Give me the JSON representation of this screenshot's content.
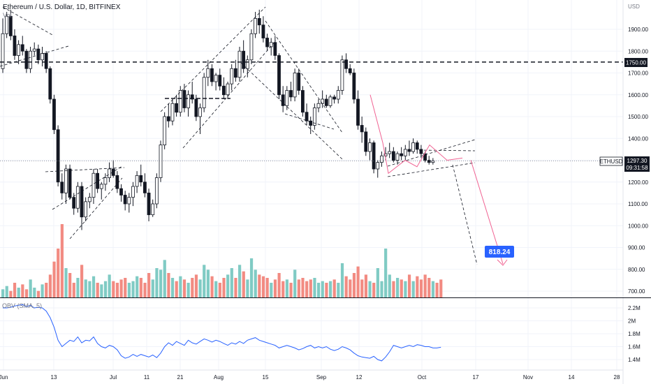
{
  "header": {
    "symbol_title": "Ethereum / U.S. Dollar, 1D, BITFINEX",
    "volume_label": "Vol"
  },
  "price_axis": {
    "currency": "USD",
    "ticks": [
      "1900.00",
      "1800.00",
      "1700.00",
      "1600.00",
      "1500.00",
      "1400.00",
      "1300.00",
      "1200.00",
      "1100.00",
      "1000.00",
      "900.00",
      "800.00",
      "700.00"
    ]
  },
  "obv_axis": {
    "ticks": [
      "2.2M",
      "2M",
      "1.8M",
      "1.6M",
      "1.4M"
    ]
  },
  "time_axis": {
    "ticks": [
      "Jun",
      "13",
      "Jul",
      "11",
      "21",
      "Aug",
      "15",
      "Sep",
      "12",
      "Oct",
      "17",
      "Nov",
      "14",
      "28"
    ]
  },
  "badges": {
    "level_1750": "1750.00",
    "ticker": "ETHUSD",
    "last_price": "1297.30",
    "countdown": "09:31:58",
    "target": "818.24"
  },
  "obv_panel": {
    "label": "OBV (SMA, 5)"
  },
  "colors": {
    "up": "#26a69a",
    "down": "#ef5350",
    "vol_up": "#80cbc4",
    "vol_down": "#f28b82",
    "obv_line": "#2962ff",
    "projection": "#f06292",
    "target_badge": "#2962ff",
    "grid": "#f0f3fa"
  },
  "chart_data": {
    "type": "candlestick",
    "title": "Ethereum / U.S. Dollar, 1D, BITFINEX",
    "price_range": [
      680,
      2000
    ],
    "horizontal_level": 1750,
    "current_price": 1297.3,
    "target_price": 818.24,
    "candles": [
      [
        1720,
        1950,
        1700,
        1880
      ],
      [
        1880,
        1980,
        1860,
        1960
      ],
      [
        1960,
        1990,
        1850,
        1870
      ],
      [
        1870,
        1900,
        1760,
        1780
      ],
      [
        1780,
        1850,
        1740,
        1830
      ],
      [
        1830,
        1870,
        1780,
        1800
      ],
      [
        1800,
        1810,
        1700,
        1720
      ],
      [
        1720,
        1820,
        1700,
        1800
      ],
      [
        1800,
        1840,
        1780,
        1810
      ],
      [
        1810,
        1830,
        1740,
        1760
      ],
      [
        1760,
        1820,
        1730,
        1790
      ],
      [
        1790,
        1800,
        1700,
        1720
      ],
      [
        1720,
        1730,
        1560,
        1580
      ],
      [
        1580,
        1600,
        1420,
        1440
      ],
      [
        1440,
        1460,
        1180,
        1200
      ],
      [
        1200,
        1240,
        1120,
        1150
      ],
      [
        1150,
        1280,
        1100,
        1260
      ],
      [
        1260,
        1280,
        1120,
        1130
      ],
      [
        1130,
        1150,
        1050,
        1080
      ],
      [
        1080,
        1200,
        1060,
        1180
      ],
      [
        1180,
        1200,
        980,
        1040
      ],
      [
        1040,
        1130,
        1020,
        1110
      ],
      [
        1110,
        1150,
        1080,
        1130
      ],
      [
        1130,
        1260,
        1100,
        1240
      ],
      [
        1240,
        1260,
        1150,
        1170
      ],
      [
        1170,
        1200,
        1120,
        1190
      ],
      [
        1190,
        1240,
        1160,
        1220
      ],
      [
        1220,
        1290,
        1200,
        1260
      ],
      [
        1260,
        1300,
        1220,
        1230
      ],
      [
        1230,
        1250,
        1150,
        1170
      ],
      [
        1170,
        1190,
        1110,
        1140
      ],
      [
        1140,
        1160,
        1070,
        1100
      ],
      [
        1100,
        1150,
        1060,
        1130
      ],
      [
        1130,
        1200,
        1090,
        1180
      ],
      [
        1180,
        1250,
        1150,
        1230
      ],
      [
        1230,
        1280,
        1180,
        1200
      ],
      [
        1200,
        1240,
        1130,
        1150
      ],
      [
        1150,
        1170,
        1020,
        1050
      ],
      [
        1050,
        1120,
        1040,
        1100
      ],
      [
        1100,
        1240,
        1080,
        1220
      ],
      [
        1220,
        1390,
        1200,
        1370
      ],
      [
        1370,
        1520,
        1350,
        1500
      ],
      [
        1500,
        1560,
        1450,
        1480
      ],
      [
        1480,
        1580,
        1460,
        1560
      ],
      [
        1560,
        1600,
        1500,
        1520
      ],
      [
        1520,
        1640,
        1500,
        1620
      ],
      [
        1620,
        1650,
        1520,
        1540
      ],
      [
        1540,
        1620,
        1500,
        1600
      ],
      [
        1600,
        1660,
        1560,
        1580
      ],
      [
        1580,
        1600,
        1480,
        1500
      ],
      [
        1500,
        1560,
        1420,
        1540
      ],
      [
        1540,
        1700,
        1520,
        1680
      ],
      [
        1680,
        1760,
        1640,
        1720
      ],
      [
        1720,
        1740,
        1640,
        1660
      ],
      [
        1660,
        1700,
        1620,
        1690
      ],
      [
        1690,
        1720,
        1620,
        1640
      ],
      [
        1640,
        1680,
        1580,
        1600
      ],
      [
        1600,
        1660,
        1580,
        1650
      ],
      [
        1650,
        1740,
        1620,
        1720
      ],
      [
        1720,
        1760,
        1660,
        1680
      ],
      [
        1680,
        1820,
        1660,
        1800
      ],
      [
        1800,
        1850,
        1700,
        1720
      ],
      [
        1720,
        1780,
        1680,
        1760
      ],
      [
        1760,
        1900,
        1740,
        1880
      ],
      [
        1880,
        1980,
        1860,
        1950
      ],
      [
        1950,
        1990,
        1880,
        1920
      ],
      [
        1920,
        1960,
        1840,
        1860
      ],
      [
        1860,
        1880,
        1800,
        1820
      ],
      [
        1820,
        1860,
        1780,
        1840
      ],
      [
        1840,
        1870,
        1760,
        1780
      ],
      [
        1780,
        1790,
        1580,
        1600
      ],
      [
        1600,
        1640,
        1520,
        1550
      ],
      [
        1550,
        1640,
        1530,
        1620
      ],
      [
        1620,
        1660,
        1570,
        1590
      ],
      [
        1590,
        1720,
        1570,
        1700
      ],
      [
        1700,
        1720,
        1600,
        1620
      ],
      [
        1620,
        1640,
        1500,
        1520
      ],
      [
        1520,
        1560,
        1460,
        1480
      ],
      [
        1480,
        1500,
        1420,
        1460
      ],
      [
        1460,
        1560,
        1440,
        1540
      ],
      [
        1540,
        1580,
        1520,
        1560
      ],
      [
        1560,
        1620,
        1540,
        1580
      ],
      [
        1580,
        1600,
        1540,
        1550
      ],
      [
        1550,
        1600,
        1540,
        1590
      ],
      [
        1590,
        1600,
        1560,
        1580
      ],
      [
        1580,
        1640,
        1560,
        1620
      ],
      [
        1620,
        1780,
        1600,
        1760
      ],
      [
        1760,
        1790,
        1700,
        1720
      ],
      [
        1720,
        1740,
        1690,
        1700
      ],
      [
        1700,
        1720,
        1560,
        1580
      ],
      [
        1580,
        1620,
        1440,
        1460
      ],
      [
        1460,
        1500,
        1380,
        1430
      ],
      [
        1430,
        1450,
        1320,
        1340
      ],
      [
        1340,
        1400,
        1300,
        1380
      ],
      [
        1380,
        1390,
        1240,
        1260
      ],
      [
        1260,
        1300,
        1220,
        1290
      ],
      [
        1290,
        1340,
        1270,
        1320
      ],
      [
        1320,
        1360,
        1300,
        1330
      ],
      [
        1330,
        1380,
        1310,
        1340
      ],
      [
        1340,
        1360,
        1290,
        1300
      ],
      [
        1300,
        1340,
        1280,
        1330
      ],
      [
        1330,
        1360,
        1300,
        1320
      ],
      [
        1320,
        1370,
        1300,
        1350
      ],
      [
        1350,
        1390,
        1320,
        1340
      ],
      [
        1340,
        1400,
        1330,
        1380
      ],
      [
        1380,
        1390,
        1330,
        1350
      ],
      [
        1350,
        1370,
        1310,
        1330
      ],
      [
        1330,
        1340,
        1290,
        1300
      ],
      [
        1300,
        1320,
        1280,
        1290
      ],
      [
        1290,
        1310,
        1280,
        1297.3
      ]
    ],
    "volume": [
      5,
      7,
      4,
      9,
      6,
      8,
      5,
      11,
      6,
      4,
      8,
      9,
      14,
      22,
      30,
      45,
      18,
      15,
      9,
      12,
      20,
      11,
      10,
      13,
      9,
      8,
      10,
      14,
      10,
      9,
      11,
      12,
      9,
      10,
      13,
      12,
      9,
      15,
      11,
      18,
      17,
      23,
      15,
      12,
      10,
      13,
      11,
      9,
      12,
      14,
      11,
      20,
      17,
      13,
      10,
      9,
      12,
      14,
      18,
      12,
      20,
      16,
      11,
      24,
      17,
      14,
      13,
      12,
      9,
      11,
      15,
      10,
      11,
      9,
      17,
      11,
      12,
      10,
      11,
      12,
      9,
      10,
      9,
      10,
      11,
      9,
      21,
      13,
      11,
      15,
      19,
      11,
      14,
      10,
      9,
      18,
      10,
      30,
      14,
      10,
      12,
      11,
      10,
      14,
      10,
      13,
      11,
      14,
      12,
      10,
      9,
      11
    ],
    "obv_range": [
      1.3,
      2.3
    ],
    "obv": [
      2.2,
      2.2,
      2.21,
      2.23,
      2.24,
      2.25,
      2.22,
      2.24,
      2.2,
      2.21,
      2.2,
      2.15,
      2.05,
      1.9,
      1.7,
      1.6,
      1.65,
      1.7,
      1.68,
      1.75,
      1.66,
      1.7,
      1.69,
      1.75,
      1.65,
      1.6,
      1.58,
      1.62,
      1.6,
      1.55,
      1.46,
      1.42,
      1.44,
      1.48,
      1.45,
      1.48,
      1.46,
      1.44,
      1.47,
      1.43,
      1.5,
      1.6,
      1.66,
      1.62,
      1.68,
      1.65,
      1.62,
      1.7,
      1.66,
      1.64,
      1.68,
      1.72,
      1.7,
      1.67,
      1.7,
      1.68,
      1.65,
      1.62,
      1.66,
      1.64,
      1.68,
      1.65,
      1.7,
      1.72,
      1.74,
      1.7,
      1.68,
      1.66,
      1.64,
      1.62,
      1.58,
      1.6,
      1.62,
      1.6,
      1.58,
      1.55,
      1.57,
      1.6,
      1.62,
      1.58,
      1.6,
      1.58,
      1.6,
      1.56,
      1.54,
      1.56,
      1.6,
      1.58,
      1.55,
      1.5,
      1.46,
      1.44,
      1.43,
      1.42,
      1.45,
      1.4,
      1.38,
      1.44,
      1.52,
      1.62,
      1.6,
      1.58,
      1.6,
      1.62,
      1.6,
      1.63,
      1.62,
      1.6,
      1.6,
      1.58,
      1.58,
      1.59
    ]
  }
}
